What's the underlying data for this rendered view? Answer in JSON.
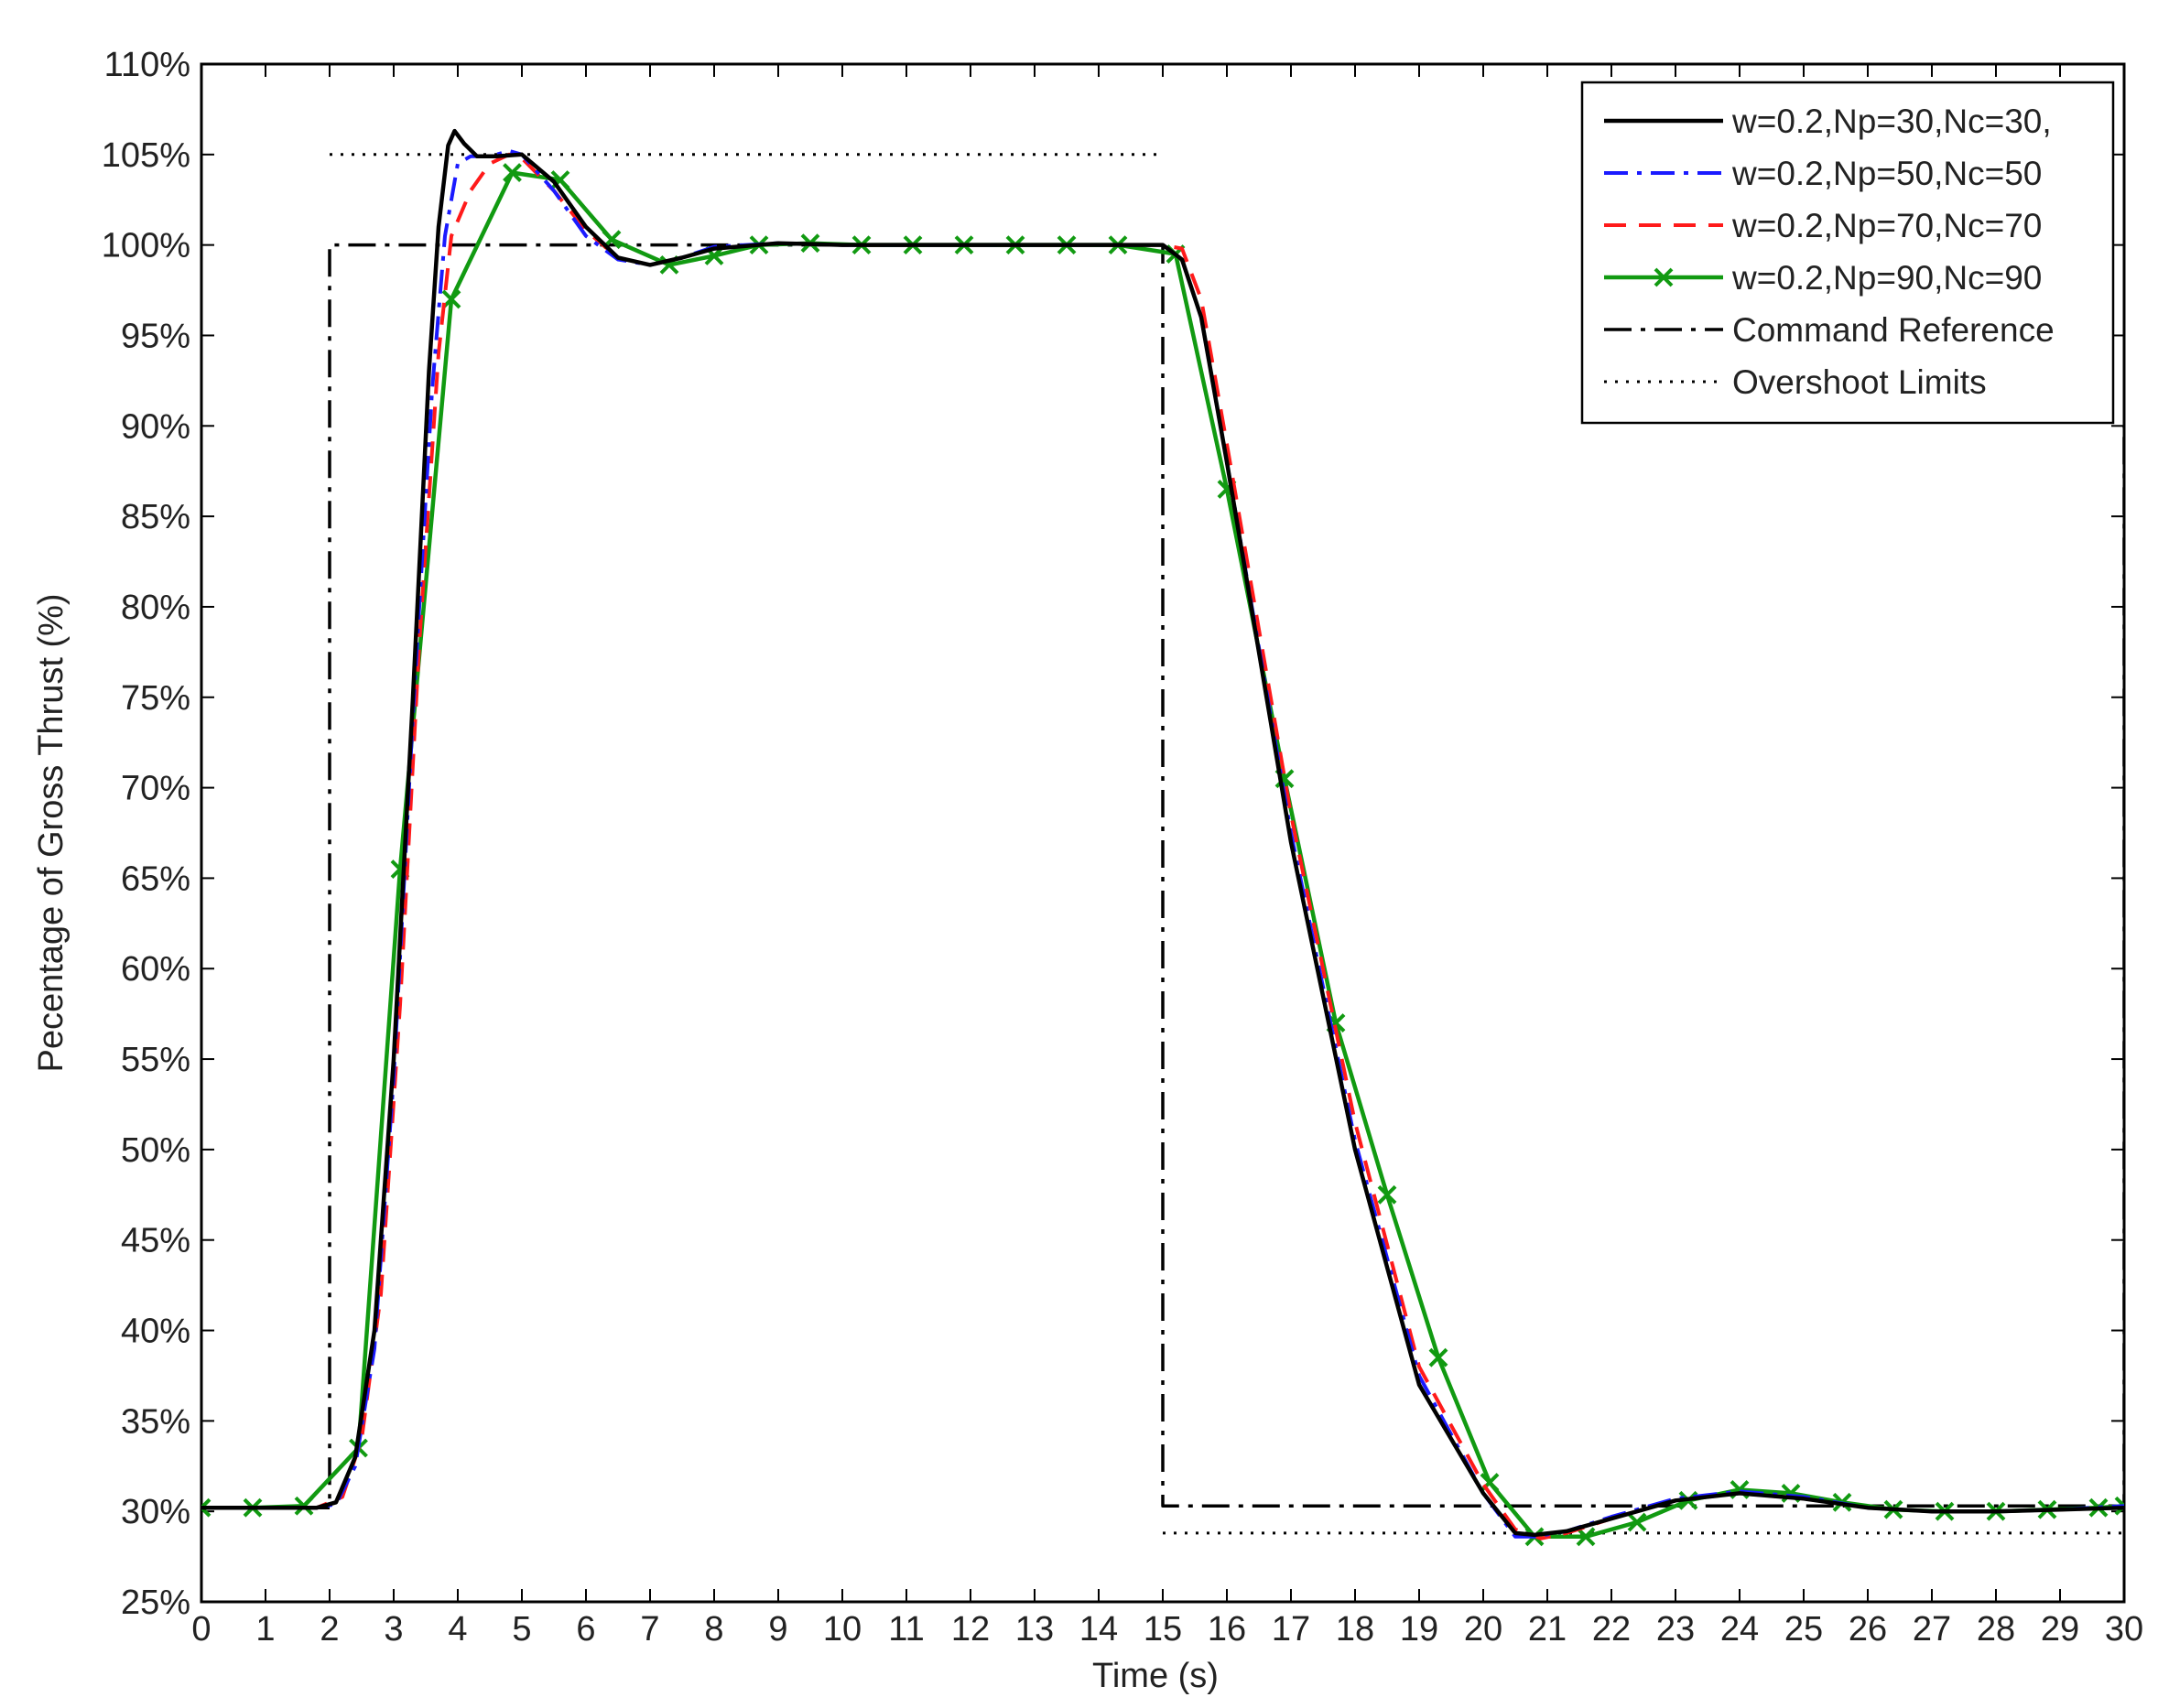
{
  "chart_data": {
    "type": "line",
    "xlabel": "Time (s)",
    "ylabel": "Pecentage of Gross Thrust (%)",
    "xlim": [
      0,
      30
    ],
    "ylim": [
      25,
      110
    ],
    "x_ticks": [
      0,
      1,
      2,
      3,
      4,
      5,
      6,
      7,
      8,
      9,
      10,
      11,
      12,
      13,
      14,
      15,
      16,
      17,
      18,
      19,
      20,
      21,
      22,
      23,
      24,
      25,
      26,
      27,
      28,
      29,
      30
    ],
    "y_ticks": [
      25,
      30,
      35,
      40,
      45,
      50,
      55,
      60,
      65,
      70,
      75,
      80,
      85,
      90,
      95,
      100,
      105,
      110
    ],
    "y_tick_labels": [
      "25%",
      "30%",
      "35%",
      "40%",
      "45%",
      "50%",
      "55%",
      "60%",
      "65%",
      "70%",
      "75%",
      "80%",
      "85%",
      "90%",
      "95%",
      "100%",
      "105%",
      "110%"
    ],
    "grid": false,
    "legend_position": "top-right",
    "series": [
      {
        "name": "w=0.2,Np=30,Nc=30,",
        "color": "#000000",
        "style": "solid",
        "x": [
          0,
          1.8,
          2.1,
          2.4,
          2.7,
          3.0,
          3.3,
          3.55,
          3.7,
          3.85,
          3.95,
          4.1,
          4.3,
          4.6,
          5.0,
          5.5,
          6.0,
          6.5,
          7.0,
          7.5,
          8.0,
          9.0,
          10,
          15.0,
          15.3,
          15.6,
          16,
          17,
          18,
          19,
          20,
          20.5,
          20.8,
          21.3,
          22,
          23,
          24,
          25,
          26,
          27,
          28,
          29,
          30
        ],
        "y": [
          30.2,
          30.2,
          30.5,
          33,
          40,
          55,
          75,
          93,
          101,
          105.5,
          106.3,
          105.6,
          104.9,
          104.9,
          105,
          103.5,
          101,
          99.3,
          98.9,
          99.3,
          99.8,
          100.1,
          100,
          100,
          99.2,
          96,
          88,
          67,
          50,
          37,
          31,
          28.8,
          28.7,
          28.9,
          29.6,
          30.6,
          31,
          30.7,
          30.2,
          30,
          30,
          30.1,
          30.2
        ]
      },
      {
        "name": "w=0.2,Np=50,Nc=50",
        "color": "#1a1aff",
        "style": "dashdot",
        "x": [
          0,
          1.8,
          2.1,
          2.4,
          2.7,
          3.0,
          3.3,
          3.6,
          3.8,
          4.0,
          4.2,
          4.5,
          4.8,
          5.0,
          5.5,
          6.0,
          6.5,
          7.0,
          7.5,
          8.0,
          9.0,
          10,
          15.0,
          15.3,
          15.6,
          16,
          17,
          18,
          19,
          20,
          20.5,
          20.8,
          21.3,
          22,
          23,
          24,
          25,
          26,
          27,
          28,
          29,
          30
        ],
        "y": [
          30.2,
          30.2,
          30.4,
          32.5,
          39,
          54,
          74,
          92,
          100.5,
          104.5,
          104.9,
          104.9,
          105.2,
          105,
          103,
          100.5,
          99.2,
          98.9,
          99.3,
          99.9,
          100.1,
          100,
          100,
          99.2,
          96,
          88,
          67.5,
          50.5,
          37.5,
          31,
          28.6,
          28.6,
          28.9,
          29.7,
          30.7,
          31.1,
          30.8,
          30.2,
          30,
          30,
          30.1,
          30.3
        ]
      },
      {
        "name": "w=0.2,Np=70,Nc=70",
        "color": "#ff1a1a",
        "style": "dashed",
        "x": [
          0,
          1.8,
          2.2,
          2.5,
          2.8,
          3.1,
          3.4,
          3.7,
          3.9,
          4.2,
          4.5,
          4.8,
          5.0,
          5.5,
          6.0,
          6.5,
          7.0,
          7.5,
          8.0,
          9.0,
          10,
          15.0,
          15.3,
          15.6,
          16,
          17,
          18,
          19,
          20,
          20.5,
          20.9,
          21.3,
          22,
          23,
          24,
          25,
          26,
          27,
          28,
          29,
          30
        ],
        "y": [
          30.2,
          30.2,
          30.8,
          34,
          42,
          58,
          78,
          94,
          100.5,
          103,
          104.5,
          105,
          104.8,
          103,
          100.8,
          99.3,
          98.9,
          99.3,
          99.8,
          100.1,
          100,
          100,
          99.8,
          97,
          89,
          68.5,
          51.5,
          38,
          31.5,
          29,
          28.5,
          28.8,
          29.6,
          30.6,
          31,
          30.7,
          30.2,
          30,
          30,
          30.1,
          30.2
        ]
      },
      {
        "name": "w=0.2,Np=90,Nc=90",
        "color": "#119a11",
        "style": "solid-marker",
        "x": [
          0,
          0.8,
          1.6,
          2.45,
          3.1,
          3.9,
          4.85,
          5.6,
          6.4,
          7.3,
          8.0,
          8.7,
          9.5,
          10.3,
          11.1,
          11.9,
          12.7,
          13.5,
          14.3,
          15.2,
          16.0,
          16.9,
          17.7,
          18.5,
          19.3,
          20.1,
          20.8,
          21.6,
          22.4,
          23.2,
          24.0,
          24.8,
          25.6,
          26.4,
          27.2,
          28.0,
          28.8,
          29.6,
          30.0
        ],
        "y": [
          30.2,
          30.2,
          30.3,
          33.5,
          65.5,
          97,
          104,
          103.6,
          100.3,
          98.9,
          99.4,
          100,
          100.1,
          100,
          100,
          100,
          100,
          100,
          100,
          99.5,
          86.5,
          70.5,
          57,
          47.5,
          38.5,
          31.6,
          28.6,
          28.6,
          29.4,
          30.6,
          31.2,
          31,
          30.5,
          30.1,
          30,
          30,
          30.1,
          30.2,
          30.3
        ]
      },
      {
        "name": "Command Reference",
        "color": "#000000",
        "style": "longdashdot",
        "x": [
          0,
          2,
          2,
          15,
          15,
          30,
          30
        ],
        "y": [
          30.2,
          30.2,
          100,
          100,
          30.3,
          30.3,
          90
        ]
      },
      {
        "name": "Overshoot Limits",
        "color": "#000000",
        "style": "dotted",
        "segments": [
          {
            "x": [
              2,
              15
            ],
            "y": [
              105,
              105
            ]
          },
          {
            "x": [
              15,
              30
            ],
            "y": [
              28.8,
              28.8
            ]
          }
        ]
      }
    ]
  }
}
